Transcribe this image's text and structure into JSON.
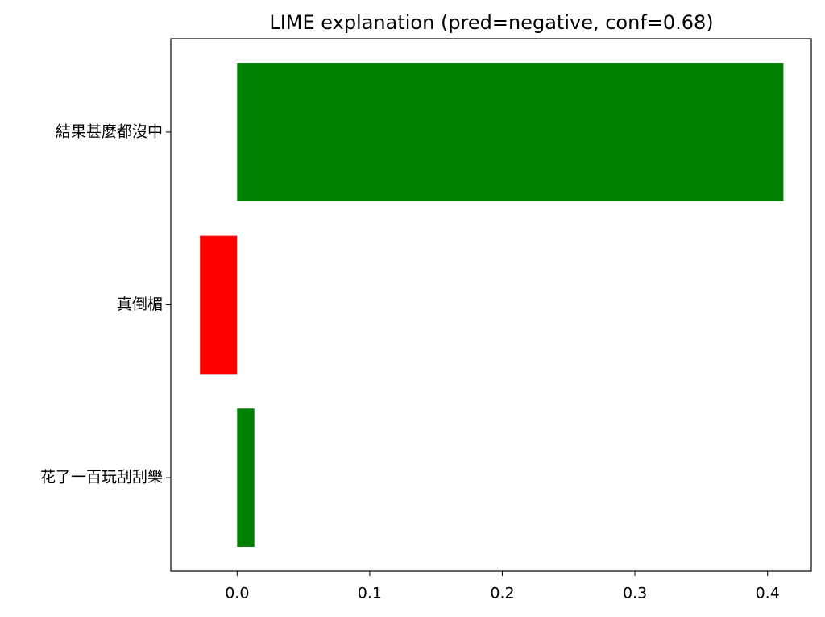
{
  "chart_data": {
    "type": "barh",
    "title": "LIME explanation (pred=negative, conf=0.68)",
    "categories": [
      "結果甚麼都沒中",
      "真倒楣",
      "花了一百玩刮刮樂"
    ],
    "values": [
      0.412,
      -0.028,
      0.013
    ],
    "colors": [
      "#008000",
      "#ff0000",
      "#008000"
    ],
    "xlim": [
      -0.05,
      0.433
    ],
    "xticks": [
      {
        "value": 0,
        "label": "0.0"
      },
      0.1,
      0.2,
      0.3,
      0.4
    ],
    "grid": false
  }
}
